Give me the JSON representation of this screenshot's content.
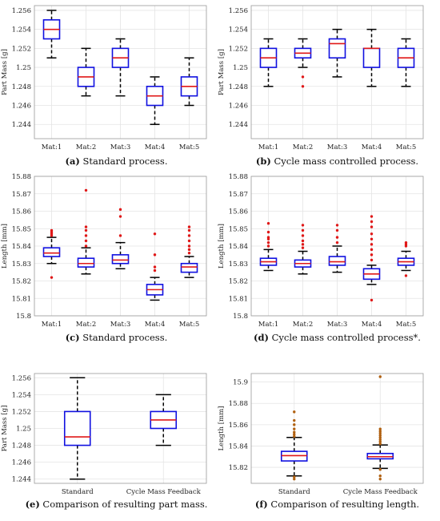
{
  "chart_data": [
    {
      "type": "box",
      "caption_label": "(a)",
      "caption_text": "Standard process.",
      "ylabel": "Part Mass [g]",
      "ylim": [
        1.2425,
        1.2565
      ],
      "yticks": [
        "1.244",
        "1.246",
        "1.248",
        "1.25",
        "1.252",
        "1.254",
        "1.256"
      ],
      "yticks_values": [
        1.244,
        1.246,
        1.248,
        1.25,
        1.252,
        1.254,
        1.256
      ],
      "categories": [
        "Mat:1",
        "Mat:2",
        "Mat:3",
        "Mat:4",
        "Mat:5"
      ],
      "boxes": [
        {
          "whislo": 1.251,
          "q1": 1.253,
          "med": 1.254,
          "q3": 1.255,
          "whishi": 1.256,
          "outliers": []
        },
        {
          "whislo": 1.247,
          "q1": 1.248,
          "med": 1.249,
          "q3": 1.25,
          "whishi": 1.252,
          "outliers": []
        },
        {
          "whislo": 1.247,
          "q1": 1.25,
          "med": 1.251,
          "q3": 1.252,
          "whishi": 1.253,
          "outliers": []
        },
        {
          "whislo": 1.244,
          "q1": 1.246,
          "med": 1.247,
          "q3": 1.248,
          "whishi": 1.249,
          "outliers": []
        },
        {
          "whislo": 1.246,
          "q1": 1.247,
          "med": 1.248,
          "q3": 1.249,
          "whishi": 1.251,
          "outliers": []
        }
      ]
    },
    {
      "type": "box",
      "caption_label": "(b)",
      "caption_text": "Cycle mass controlled process.",
      "ylabel": "Part Mass [g]",
      "ylim": [
        1.2425,
        1.2565
      ],
      "yticks": [
        "1.244",
        "1.246",
        "1.248",
        "1.25",
        "1.252",
        "1.254",
        "1.256"
      ],
      "yticks_values": [
        1.244,
        1.246,
        1.248,
        1.25,
        1.252,
        1.254,
        1.256
      ],
      "categories": [
        "Mat:1",
        "Mat:2",
        "Mat:3",
        "Mat:4",
        "Mat:5"
      ],
      "boxes": [
        {
          "whislo": 1.248,
          "q1": 1.25,
          "med": 1.251,
          "q3": 1.252,
          "whishi": 1.253,
          "outliers": []
        },
        {
          "whislo": 1.25,
          "q1": 1.251,
          "med": 1.2515,
          "q3": 1.252,
          "whishi": 1.253,
          "outliers": [
            1.249,
            1.248
          ]
        },
        {
          "whislo": 1.249,
          "q1": 1.251,
          "med": 1.2525,
          "q3": 1.253,
          "whishi": 1.254,
          "outliers": []
        },
        {
          "whislo": 1.248,
          "q1": 1.25,
          "med": 1.252,
          "q3": 1.252,
          "whishi": 1.254,
          "outliers": []
        },
        {
          "whislo": 1.248,
          "q1": 1.25,
          "med": 1.251,
          "q3": 1.252,
          "whishi": 1.253,
          "outliers": []
        }
      ]
    },
    {
      "type": "box",
      "caption_label": "(c)",
      "caption_text": "Standard process.",
      "ylabel": "Length [mm]",
      "ylim": [
        15.8,
        15.88
      ],
      "yticks": [
        "15.8",
        "15.81",
        "15.82",
        "15.83",
        "15.84",
        "15.85",
        "15.86",
        "15.87",
        "15.88"
      ],
      "yticks_values": [
        15.8,
        15.81,
        15.82,
        15.83,
        15.84,
        15.85,
        15.86,
        15.87,
        15.88
      ],
      "categories": [
        "Mat:1",
        "Mat:2",
        "Mat:3",
        "Mat:4",
        "Mat:5"
      ],
      "boxes": [
        {
          "whislo": 15.83,
          "q1": 15.834,
          "med": 15.836,
          "q3": 15.839,
          "whishi": 15.845,
          "outliers": [
            15.846,
            15.847,
            15.848,
            15.849,
            15.822
          ]
        },
        {
          "whislo": 15.824,
          "q1": 15.828,
          "med": 15.83,
          "q3": 15.833,
          "whishi": 15.839,
          "outliers": [
            15.84,
            15.843,
            15.846,
            15.849,
            15.851,
            15.872
          ]
        },
        {
          "whislo": 15.827,
          "q1": 15.83,
          "med": 15.832,
          "q3": 15.835,
          "whishi": 15.842,
          "outliers": [
            15.846,
            15.857,
            15.861
          ]
        },
        {
          "whislo": 15.809,
          "q1": 15.812,
          "med": 15.815,
          "q3": 15.818,
          "whishi": 15.822,
          "outliers": [
            15.826,
            15.828,
            15.835,
            15.847
          ]
        },
        {
          "whislo": 15.822,
          "q1": 15.825,
          "med": 15.828,
          "q3": 15.83,
          "whishi": 15.834,
          "outliers": [
            15.836,
            15.838,
            15.84,
            15.843,
            15.846,
            15.849,
            15.851
          ]
        }
      ]
    },
    {
      "type": "box",
      "caption_label": "(d)",
      "caption_text": "Cycle mass controlled process*.",
      "ylabel": "Length [mm]",
      "ylim": [
        15.8,
        15.88
      ],
      "yticks": [
        "15.8",
        "15.81",
        "15.82",
        "15.83",
        "15.84",
        "15.85",
        "15.86",
        "15.87",
        "15.88"
      ],
      "yticks_values": [
        15.8,
        15.81,
        15.82,
        15.83,
        15.84,
        15.85,
        15.86,
        15.87,
        15.88
      ],
      "categories": [
        "Mat:1",
        "Mat:2",
        "Mat:3",
        "Mat:4",
        "Mat:5"
      ],
      "boxes": [
        {
          "whislo": 15.826,
          "q1": 15.829,
          "med": 15.831,
          "q3": 15.833,
          "whishi": 15.838,
          "outliers": [
            15.84,
            15.842,
            15.844,
            15.845,
            15.848,
            15.853
          ]
        },
        {
          "whislo": 15.824,
          "q1": 15.828,
          "med": 15.83,
          "q3": 15.832,
          "whishi": 15.837,
          "outliers": [
            15.839,
            15.841,
            15.843,
            15.846,
            15.849,
            15.852
          ]
        },
        {
          "whislo": 15.825,
          "q1": 15.829,
          "med": 15.831,
          "q3": 15.834,
          "whishi": 15.84,
          "outliers": [
            15.842,
            15.845,
            15.849,
            15.852
          ]
        },
        {
          "whislo": 15.818,
          "q1": 15.821,
          "med": 15.824,
          "q3": 15.827,
          "whishi": 15.829,
          "outliers": [
            15.832,
            15.835,
            15.838,
            15.841,
            15.844,
            15.847,
            15.851,
            15.854,
            15.857,
            15.809
          ]
        },
        {
          "whislo": 15.826,
          "q1": 15.829,
          "med": 15.831,
          "q3": 15.833,
          "whishi": 15.837,
          "outliers": [
            15.84,
            15.841,
            15.842,
            15.823
          ]
        }
      ]
    },
    {
      "type": "box",
      "caption_label": "(e)",
      "caption_text": "Comparison of resulting part mass.",
      "ylabel": "Part Mass [g]",
      "ylim": [
        1.2435,
        1.2565
      ],
      "yticks": [
        "1.244",
        "1.246",
        "1.248",
        "1.25",
        "1.252",
        "1.254",
        "1.256"
      ],
      "yticks_values": [
        1.244,
        1.246,
        1.248,
        1.25,
        1.252,
        1.254,
        1.256
      ],
      "categories": [
        "Standard",
        "Cycle Mass Feedback"
      ],
      "boxes": [
        {
          "whislo": 1.244,
          "q1": 1.248,
          "med": 1.249,
          "q3": 1.252,
          "whishi": 1.256,
          "outliers": []
        },
        {
          "whislo": 1.248,
          "q1": 1.25,
          "med": 1.251,
          "q3": 1.252,
          "whishi": 1.254,
          "outliers": []
        }
      ]
    },
    {
      "type": "box",
      "caption_label": "(f)",
      "caption_text": "Comparison of resulting length.",
      "ylabel": "Length [mm]",
      "ylim": [
        15.805,
        15.908
      ],
      "yticks": [
        "15.82",
        "15.84",
        "15.86",
        "15.88",
        "15.9"
      ],
      "yticks_values": [
        15.82,
        15.84,
        15.86,
        15.88,
        15.9
      ],
      "categories": [
        "Standard",
        "Cycle Mass Feedback"
      ],
      "boxes": [
        {
          "whislo": 15.812,
          "q1": 15.826,
          "med": 15.831,
          "q3": 15.835,
          "whishi": 15.848,
          "outliers": [
            15.849,
            15.851,
            15.853,
            15.856,
            15.86,
            15.864,
            15.872,
            15.811,
            15.809
          ]
        },
        {
          "whislo": 15.819,
          "q1": 15.828,
          "med": 15.83,
          "q3": 15.833,
          "whishi": 15.841,
          "outliers": [
            15.842,
            15.844,
            15.846,
            15.848,
            15.85,
            15.852,
            15.854,
            15.856,
            15.905,
            15.818,
            15.812,
            15.809
          ]
        }
      ]
    }
  ],
  "colors": {
    "box": "#1010e0",
    "median": "#e01818",
    "whisker": "#000000",
    "outlier": "#e01818",
    "outlier_dark": "#b06010",
    "grid": "#e4e4e4",
    "axes": "#999999"
  }
}
